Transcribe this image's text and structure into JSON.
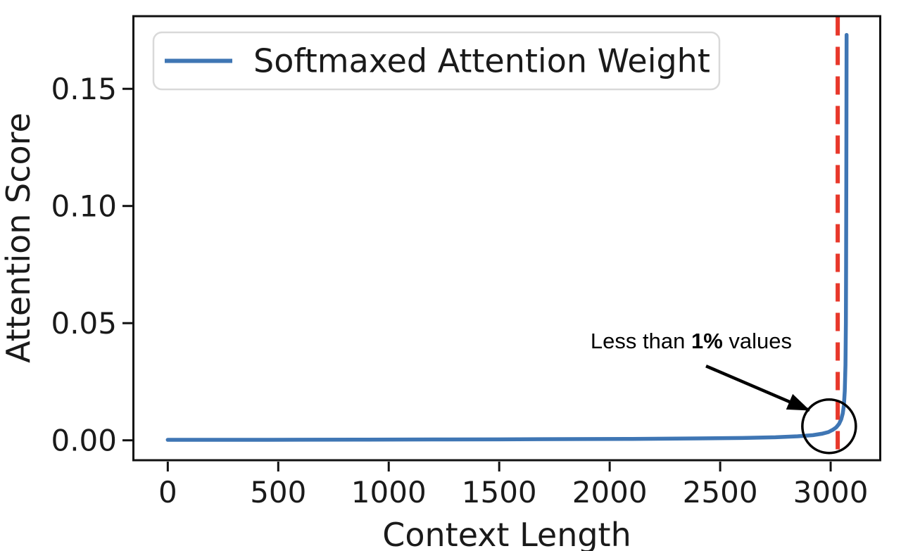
{
  "figure": {
    "background": "#ffffff",
    "border_color": "#111111"
  },
  "chart_data": {
    "type": "line",
    "title": "",
    "xlabel": "Context Length",
    "ylabel": "Attention Score",
    "xlim": [
      -154,
      3226
    ],
    "ylim": [
      -0.0085,
      0.181
    ],
    "grid": false,
    "xticks": [
      0,
      500,
      1000,
      1500,
      2000,
      2500,
      3000
    ],
    "yticks": [
      0,
      0.05,
      0.1,
      0.15
    ],
    "ytick_labels": [
      "0.00",
      "0.05",
      "0.10",
      "0.15"
    ],
    "legend": {
      "position": "upper left",
      "entries": [
        {
          "label": "Softmaxed Attention Weight",
          "color": "#3f76b4"
        }
      ]
    },
    "series": [
      {
        "name": "Softmaxed Attention Weight",
        "color": "#3f76b4",
        "points": [
          [
            0,
            0.0002
          ],
          [
            300,
            0.00022
          ],
          [
            600,
            0.00025
          ],
          [
            900,
            0.0003
          ],
          [
            1200,
            0.00035
          ],
          [
            1500,
            0.0004
          ],
          [
            1800,
            0.0005
          ],
          [
            2100,
            0.0006
          ],
          [
            2400,
            0.0008
          ],
          [
            2600,
            0.001
          ],
          [
            2750,
            0.0013
          ],
          [
            2850,
            0.0017
          ],
          [
            2920,
            0.0022
          ],
          [
            2960,
            0.0028
          ],
          [
            2990,
            0.0035
          ],
          [
            3010,
            0.0045
          ],
          [
            3025,
            0.0055
          ],
          [
            3038,
            0.007
          ],
          [
            3048,
            0.009
          ],
          [
            3055,
            0.0115
          ],
          [
            3060,
            0.015
          ],
          [
            3064,
            0.021
          ],
          [
            3067,
            0.032
          ],
          [
            3069,
            0.05
          ],
          [
            3070,
            0.075
          ],
          [
            3071,
            0.11
          ],
          [
            3071.5,
            0.14
          ],
          [
            3072,
            0.173
          ]
        ]
      }
    ],
    "vline": {
      "x": 3032,
      "color": "#e8382b",
      "style": "dashed"
    },
    "annotation": {
      "parts": [
        "Less than ",
        "1%",
        " values"
      ],
      "bold_part": "1%",
      "text_data_xy": [
        2369,
        0.0426
      ],
      "arrow_tail_data_xy": [
        2436,
        0.0317
      ],
      "arrow_tip_data_xy": [
        2904,
        0.0128
      ],
      "circle_center_data_xy": [
        2993,
        0.006
      ],
      "circle_radius_px": 38,
      "color": "#000000"
    }
  }
}
